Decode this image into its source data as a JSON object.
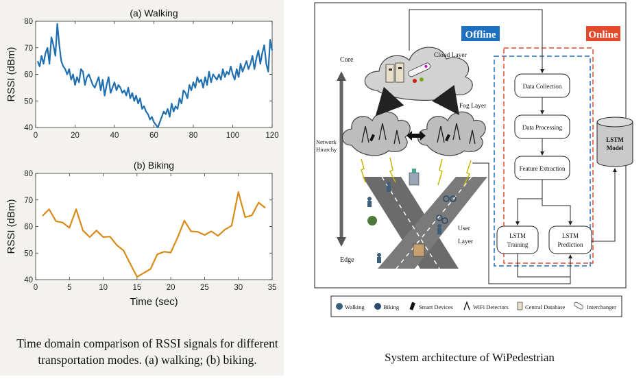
{
  "left": {
    "caption_line1": "Time domain comparison of RSSI signals for different",
    "caption_line2": "transportation modes. (a) walking; (b) biking."
  },
  "chart_data": [
    {
      "type": "line",
      "title": "(a) Walking",
      "xlabel": "",
      "ylabel": "RSSI (dBm)",
      "xlim": [
        0,
        120
      ],
      "ylim": [
        40,
        80
      ],
      "xticks": [
        0,
        20,
        40,
        60,
        80,
        100,
        120
      ],
      "yticks": [
        40,
        50,
        60,
        70,
        80
      ],
      "color": "#1f6fb0",
      "series": [
        {
          "name": "Walking",
          "x": [
            1,
            2,
            3,
            4,
            5,
            6,
            7,
            8,
            9,
            10,
            11,
            12,
            13,
            14,
            15,
            16,
            17,
            18,
            19,
            20,
            21,
            22,
            23,
            24,
            25,
            26,
            27,
            28,
            29,
            30,
            31,
            32,
            33,
            34,
            35,
            36,
            37,
            38,
            39,
            40,
            41,
            42,
            43,
            44,
            45,
            46,
            47,
            48,
            49,
            50,
            51,
            52,
            53,
            54,
            55,
            56,
            57,
            58,
            59,
            60,
            61,
            62,
            63,
            64,
            65,
            66,
            67,
            68,
            69,
            70,
            71,
            72,
            73,
            74,
            75,
            76,
            77,
            78,
            79,
            80,
            81,
            82,
            83,
            84,
            85,
            86,
            87,
            88,
            89,
            90,
            91,
            92,
            93,
            94,
            95,
            96,
            97,
            98,
            99,
            100,
            101,
            102,
            103,
            104,
            105,
            106,
            107,
            108,
            109,
            110,
            111,
            112,
            113,
            114,
            115,
            116,
            117,
            118,
            119,
            120
          ],
          "values": [
            65,
            63,
            67,
            64,
            68,
            70,
            64,
            74,
            71,
            67,
            79,
            71,
            65,
            63,
            62,
            60,
            62,
            58,
            60,
            56,
            59,
            57,
            62,
            61,
            56,
            59,
            60,
            58,
            56,
            55,
            57,
            59,
            54,
            58,
            52,
            56,
            59,
            53,
            55,
            57,
            54,
            56,
            55,
            53,
            54,
            52,
            55,
            51,
            53,
            50,
            52,
            49,
            51,
            47,
            48,
            46,
            45,
            43,
            44,
            42,
            41,
            40,
            42,
            44,
            46,
            45,
            47,
            44,
            49,
            46,
            48,
            47,
            51,
            49,
            54,
            53,
            51,
            56,
            54,
            57,
            55,
            59,
            57,
            58,
            55,
            59,
            56,
            61,
            57,
            60,
            59,
            58,
            60,
            58,
            62,
            59,
            61,
            60,
            63,
            60,
            58,
            62,
            59,
            64,
            61,
            63,
            65,
            62,
            64,
            67,
            62,
            66,
            69,
            64,
            68,
            71,
            64,
            61,
            73,
            69
          ]
        }
      ]
    },
    {
      "type": "line",
      "title": "(b) Biking",
      "xlabel": "Time (sec)",
      "ylabel": "RSSI (dBm)",
      "xlim": [
        0,
        35
      ],
      "ylim": [
        40,
        80
      ],
      "xticks": [
        0,
        5,
        10,
        15,
        20,
        25,
        30,
        35
      ],
      "yticks": [
        40,
        50,
        60,
        70,
        80
      ],
      "color": "#d98a16",
      "series": [
        {
          "name": "Biking",
          "x": [
            1,
            2,
            3,
            4,
            5,
            6,
            7,
            8,
            9,
            10,
            11,
            12,
            13,
            14,
            15,
            16,
            17,
            18,
            19,
            20,
            21,
            22,
            23,
            24,
            25,
            26,
            27,
            28,
            29,
            30,
            31,
            32,
            33,
            34
          ],
          "values": [
            64,
            66.5,
            62,
            61.5,
            59.5,
            66.5,
            58.5,
            56,
            58.5,
            56,
            56.2,
            53,
            51,
            46,
            41,
            42.5,
            44,
            49.5,
            50.5,
            50.2,
            55.8,
            62.2,
            58.2,
            58,
            56.8,
            58.2,
            56.5,
            58.8,
            60.3,
            73,
            63.5,
            64.2,
            69,
            67
          ]
        }
      ]
    }
  ],
  "diagram": {
    "offline_label": "Offline",
    "online_label": "Online",
    "core_label": "Core",
    "edge_label": "Edge",
    "hierarchy_label_line1": "Network",
    "hierarchy_label_line2": "Hirarchy",
    "cloud_layer_label": "Cloud Layer",
    "fog_layer_label": "Fog Layer",
    "user_layer_line1": "User",
    "user_layer_line2": "Layer",
    "steps": [
      "Data Collection",
      "Data Processing",
      "Feature Extraction"
    ],
    "lstm_training_line1": "LSTM",
    "lstm_training_line2": "Training",
    "lstm_prediction_line1": "LSTM",
    "lstm_prediction_line2": "Prediction",
    "lstm_model_line1": "LSTM",
    "lstm_model_line2": "Model",
    "offline_color": "#1d6fbf",
    "online_color": "#e3492b",
    "legend": [
      "Walking",
      "Biking",
      "Smart Devices",
      "WiFi Detectors",
      "Central Database",
      "Interchanger"
    ],
    "caption": "System architecture of WiPedestrian"
  }
}
